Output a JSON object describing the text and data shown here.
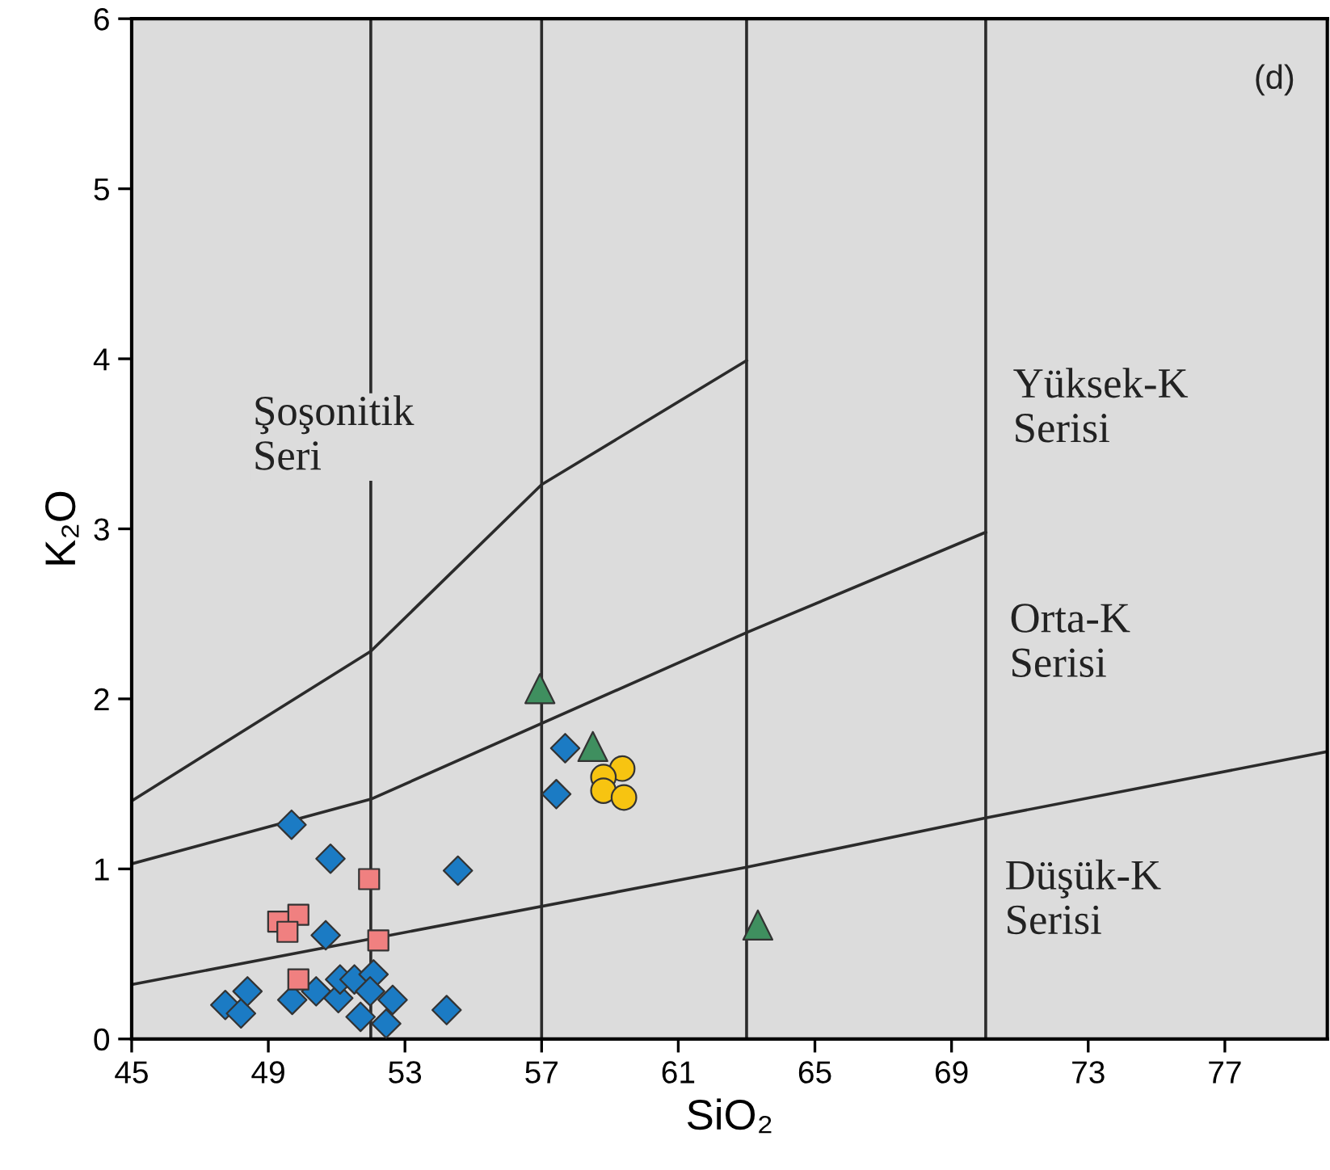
{
  "chart_data": {
    "type": "scatter",
    "xlabel": "SiO₂",
    "ylabel": "K₂O",
    "xlim": [
      45,
      80
    ],
    "ylim": [
      0,
      6
    ],
    "xticks": [
      45,
      49,
      53,
      57,
      61,
      65,
      69,
      73,
      77
    ],
    "yticks": [
      0,
      1,
      2,
      3,
      4,
      5,
      6
    ],
    "grid": false,
    "legend": false,
    "series": [
      {
        "type": "line",
        "color": "#2b2b2b",
        "marker": "none",
        "x": [
          45,
          52,
          57,
          63
        ],
        "values": [
          1.4,
          2.28,
          3.26,
          3.99
        ]
      },
      {
        "type": "line",
        "color": "#2b2b2b",
        "marker": "none",
        "x": [
          45,
          52,
          63,
          70
        ],
        "values": [
          1.03,
          1.41,
          2.39,
          2.98
        ]
      },
      {
        "type": "line",
        "color": "#2b2b2b",
        "marker": "none",
        "x": [
          45,
          63,
          70,
          80
        ],
        "values": [
          0.32,
          1.01,
          1.3,
          1.69
        ]
      },
      {
        "color": "#1b7bc4",
        "marker": "diamond",
        "x": [
          49.68,
          50.82,
          54.55,
          50.68,
          47.74,
          48.2,
          48.39,
          49.7,
          50.4,
          51.05,
          51.1,
          51.52,
          52.08,
          51.98,
          51.7,
          52.45,
          52.64,
          54.22,
          57.69,
          57.43
        ],
        "values": [
          1.26,
          1.06,
          0.99,
          0.61,
          0.2,
          0.15,
          0.28,
          0.23,
          0.28,
          0.24,
          0.35,
          0.35,
          0.38,
          0.28,
          0.13,
          0.09,
          0.23,
          0.17,
          1.71,
          1.44
        ]
      },
      {
        "color": "#f08080",
        "marker": "square",
        "x": [
          51.95,
          49.88,
          49.29,
          49.56,
          52.22,
          49.88
        ],
        "values": [
          0.94,
          0.73,
          0.69,
          0.63,
          0.58,
          0.35
        ]
      },
      {
        "color": "#3f8f5f",
        "marker": "triangle",
        "x": [
          56.95,
          58.5,
          63.33
        ],
        "values": [
          2.06,
          1.72,
          0.67
        ]
      },
      {
        "color": "#f7c411",
        "marker": "circle",
        "x": [
          59.36,
          58.81,
          58.81,
          59.41
        ],
        "values": [
          1.59,
          1.54,
          1.46,
          1.42
        ]
      }
    ],
    "ref_lines": [
      {
        "axis": "x",
        "value": 52,
        "color": "#2b2b2b"
      },
      {
        "axis": "x",
        "value": 57,
        "color": "#2b2b2b"
      },
      {
        "axis": "x",
        "value": 63,
        "color": "#2b2b2b"
      },
      {
        "axis": "x",
        "value": 70,
        "color": "#2b2b2b"
      }
    ],
    "annotations": [
      "Şoşonitik\nSeri",
      "Yüksek-K\nSerisi",
      "Orta-K\nSerisi",
      "Düşük-K\nSerisi",
      "(d)"
    ]
  }
}
